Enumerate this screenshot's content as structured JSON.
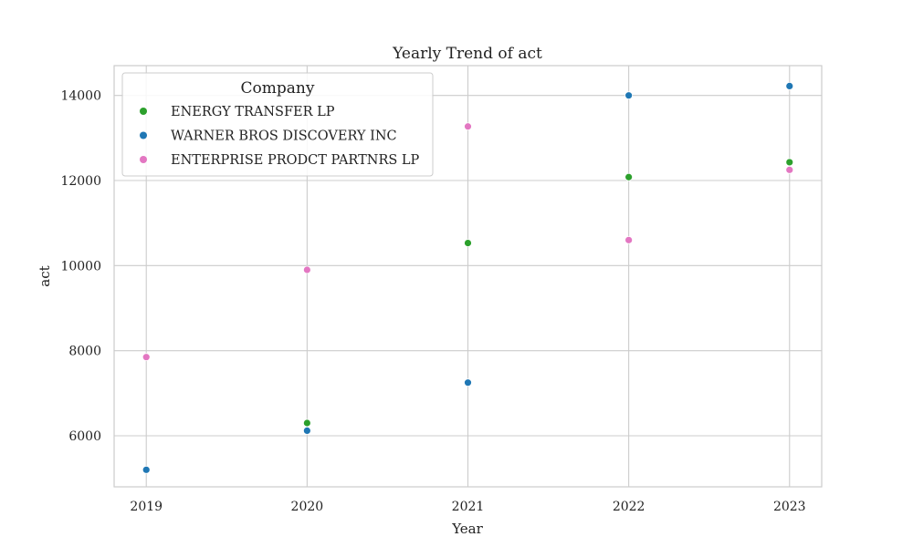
{
  "chart_data": {
    "type": "scatter",
    "title": "Yearly Trend of act",
    "xlabel": "Year",
    "ylabel": "act",
    "x": [
      2019,
      2020,
      2021,
      2022,
      2023
    ],
    "xlim": [
      2018.8,
      2023.2
    ],
    "ylim": [
      4800,
      14700
    ],
    "yticks": [
      6000,
      8000,
      10000,
      12000,
      14000
    ],
    "grid": true,
    "legend": {
      "title": "Company",
      "placement": "top-left"
    },
    "series": [
      {
        "name": "ENERGY TRANSFER LP",
        "color": "#2ca02c",
        "points": [
          [
            2020,
            6300
          ],
          [
            2021,
            10530
          ],
          [
            2022,
            12080
          ],
          [
            2023,
            12430
          ]
        ]
      },
      {
        "name": "WARNER BROS DISCOVERY INC",
        "color": "#1f77b4",
        "points": [
          [
            2019,
            5200
          ],
          [
            2020,
            6120
          ],
          [
            2021,
            7250
          ],
          [
            2022,
            14000
          ],
          [
            2023,
            14220
          ]
        ]
      },
      {
        "name": "ENTERPRISE PRODCT PARTNRS LP",
        "color": "#e377c2",
        "points": [
          [
            2019,
            7850
          ],
          [
            2020,
            9900
          ],
          [
            2021,
            13270
          ],
          [
            2022,
            10600
          ],
          [
            2023,
            12250
          ]
        ]
      }
    ]
  }
}
